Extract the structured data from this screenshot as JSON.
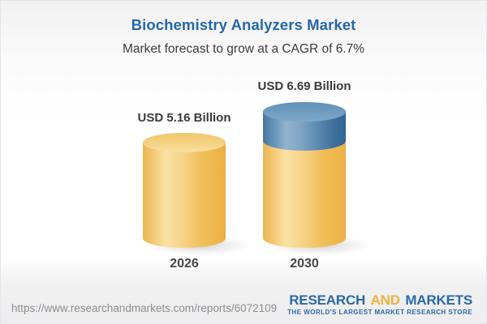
{
  "header": {
    "title": "Biochemistry Analyzers Market",
    "subtitle": "Market forecast to grow at a CAGR of 6.7%"
  },
  "chart_data": {
    "type": "bar",
    "title": "Biochemistry Analyzers Market",
    "subtitle": "Market forecast to grow at a CAGR of 6.7%",
    "cagr": "6.7%",
    "unit": "USD Billion",
    "categories": [
      "2026",
      "2030"
    ],
    "values": [
      5.16,
      6.69
    ],
    "value_labels": [
      "USD 5.16 Billion",
      "USD 6.69 Billion"
    ],
    "series": [
      {
        "name": "base-value",
        "color": "#F2C05E",
        "values": [
          5.16,
          5.16
        ]
      },
      {
        "name": "growth-increment",
        "color": "#5D8DB5",
        "values": [
          0,
          1.53
        ]
      }
    ],
    "style": "3d-cylinder",
    "legend": "none",
    "gridlines": "off"
  },
  "footer": {
    "url": "https://www.researchandmarkets.com/reports/6072109",
    "logo": {
      "word1": "RESEARCH",
      "word2": "AND",
      "word3": "MARKETS",
      "tagline": "THE WORLD'S LARGEST MARKET RESEARCH STORE"
    }
  },
  "colors": {
    "title_blue": "#2667A5",
    "cylinder_yellow": "#F2C05E",
    "cylinder_blue": "#5D8DB5",
    "logo_blue": "#2C6AA3",
    "logo_orange": "#F1B13F",
    "url_gray": "#8E8E8E"
  }
}
